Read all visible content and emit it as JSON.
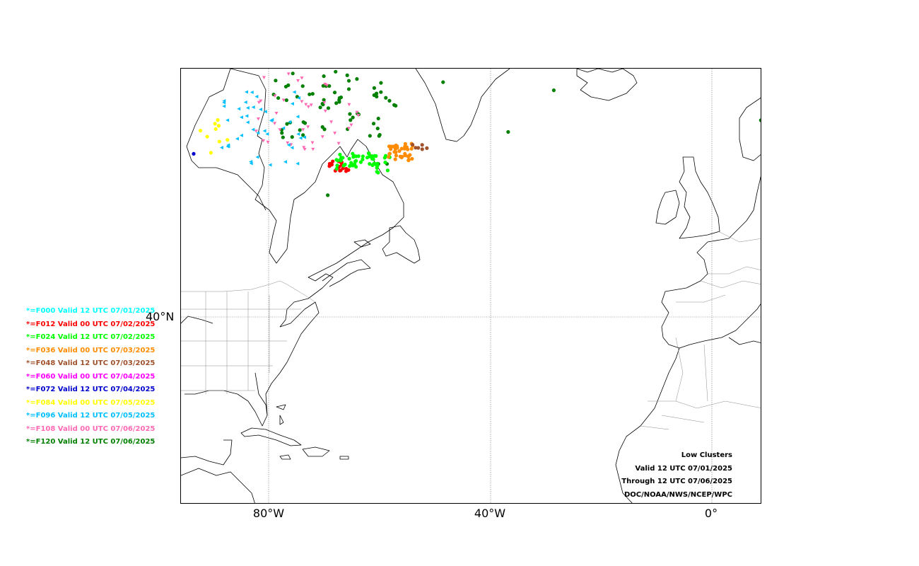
{
  "map": {
    "lon_labels": [
      "80°W",
      "40°W",
      "0°"
    ],
    "lat_labels": [
      "40°N"
    ]
  },
  "info": {
    "lines": [
      "Low Clusters",
      "Valid 12 UTC 07/01/2025",
      "Through 12 UTC 07/06/2025",
      "DOC/NOAA/NWS/NCEP/WPC"
    ]
  },
  "legend": [
    {
      "label": "*=F000 Valid 12 UTC 07/01/2025",
      "color": "#00ffff"
    },
    {
      "label": "*=F012 Valid 00 UTC 07/02/2025",
      "color": "#ff0000"
    },
    {
      "label": "*=F024 Valid 12 UTC 07/02/2025",
      "color": "#00ff00"
    },
    {
      "label": "*=F036 Valid 00 UTC 07/03/2025",
      "color": "#ff8c00"
    },
    {
      "label": "*=F048 Valid 12 UTC 07/03/2025",
      "color": "#a0522d"
    },
    {
      "label": "*=F060 Valid 00 UTC 07/04/2025",
      "color": "#ff00ff"
    },
    {
      "label": "*=F072 Valid 12 UTC 07/04/2025",
      "color": "#0000cd"
    },
    {
      "label": "*=F084 Valid 00 UTC 07/05/2025",
      "color": "#ffff00"
    },
    {
      "label": "*=F096 Valid 12 UTC 07/05/2025",
      "color": "#00bfff"
    },
    {
      "label": "*=F108 Valid 00 UTC 07/06/2025",
      "color": "#ff69b4"
    },
    {
      "label": "*=F120 Valid 12 UTC 07/06/2025",
      "color": "#008000"
    }
  ]
}
